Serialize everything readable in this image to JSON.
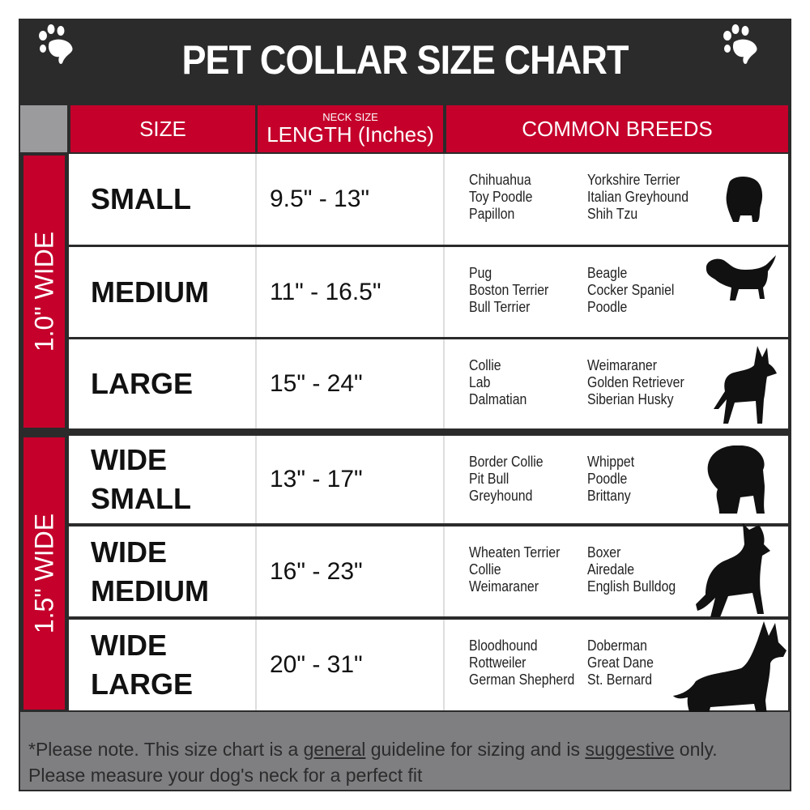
{
  "title": "PET COLLAR SIZE CHART",
  "icons": {
    "left": "paw-print-icon",
    "right": "paw-print-icon"
  },
  "colors": {
    "dark": "#2b2b2b",
    "red": "#c4002b",
    "gray": "#7f7f82"
  },
  "header": {
    "size": "SIZE",
    "length_small": "NECK SIZE",
    "length": "LENGTH (Inches)",
    "breeds": "COMMON BREEDS"
  },
  "groups": [
    {
      "label": "1.0\" WIDE"
    },
    {
      "label": "1.5\" WIDE"
    }
  ],
  "rows": [
    {
      "size": "SMALL",
      "length": "9.5\" - 13\"",
      "breeds_a": [
        "Chihuahua",
        "Toy Poodle",
        "Papillon"
      ],
      "breeds_b": [
        "Yorkshire Terrier",
        "Italian Greyhound",
        "Shih Tzu"
      ],
      "icon": "small-dog-silhouette-icon"
    },
    {
      "size": "MEDIUM",
      "length": "11\" - 16.5\"",
      "breeds_a": [
        "Pug",
        "Boston Terrier",
        "Bull Terrier"
      ],
      "breeds_b": [
        "Beagle",
        "Cocker Spaniel",
        "Poodle"
      ],
      "icon": "beagle-silhouette-icon"
    },
    {
      "size": "LARGE",
      "length": "15\" - 24\"",
      "breeds_a": [
        "Collie",
        "Lab",
        "Dalmatian"
      ],
      "breeds_b": [
        "Weimaraner",
        "Golden Retriever",
        "Siberian Husky"
      ],
      "icon": "shepherd-silhouette-icon"
    },
    {
      "size": "WIDE SMALL",
      "length": "13\" - 17\"",
      "breeds_a": [
        "Border Collie",
        "Pit Bull",
        "Greyhound"
      ],
      "breeds_b": [
        "Whippet",
        "Poodle",
        "Brittany"
      ],
      "icon": "bulldog-silhouette-icon"
    },
    {
      "size": "WIDE MEDIUM",
      "length": "16\" - 23\"",
      "breeds_a": [
        "Wheaten Terrier",
        "Collie",
        "Weimaraner"
      ],
      "breeds_b": [
        "Boxer",
        "Airedale",
        "English Bulldog"
      ],
      "icon": "pitbull-silhouette-icon"
    },
    {
      "size": "WIDE LARGE",
      "length": "20\" - 31\"",
      "breeds_a": [
        "Bloodhound",
        "Rottweiler",
        "German Shepherd"
      ],
      "breeds_b": [
        "Doberman",
        "Great Dane",
        "St. Bernard"
      ],
      "icon": "doberman-silhouette-icon"
    }
  ],
  "footer": {
    "p1": "*Please note. This size chart is a ",
    "u1": "general",
    "p2": " guideline for sizing and is ",
    "u2": "suggestive",
    "p3": " only.",
    "line2": "Please measure your dog's neck for a perfect fit"
  }
}
